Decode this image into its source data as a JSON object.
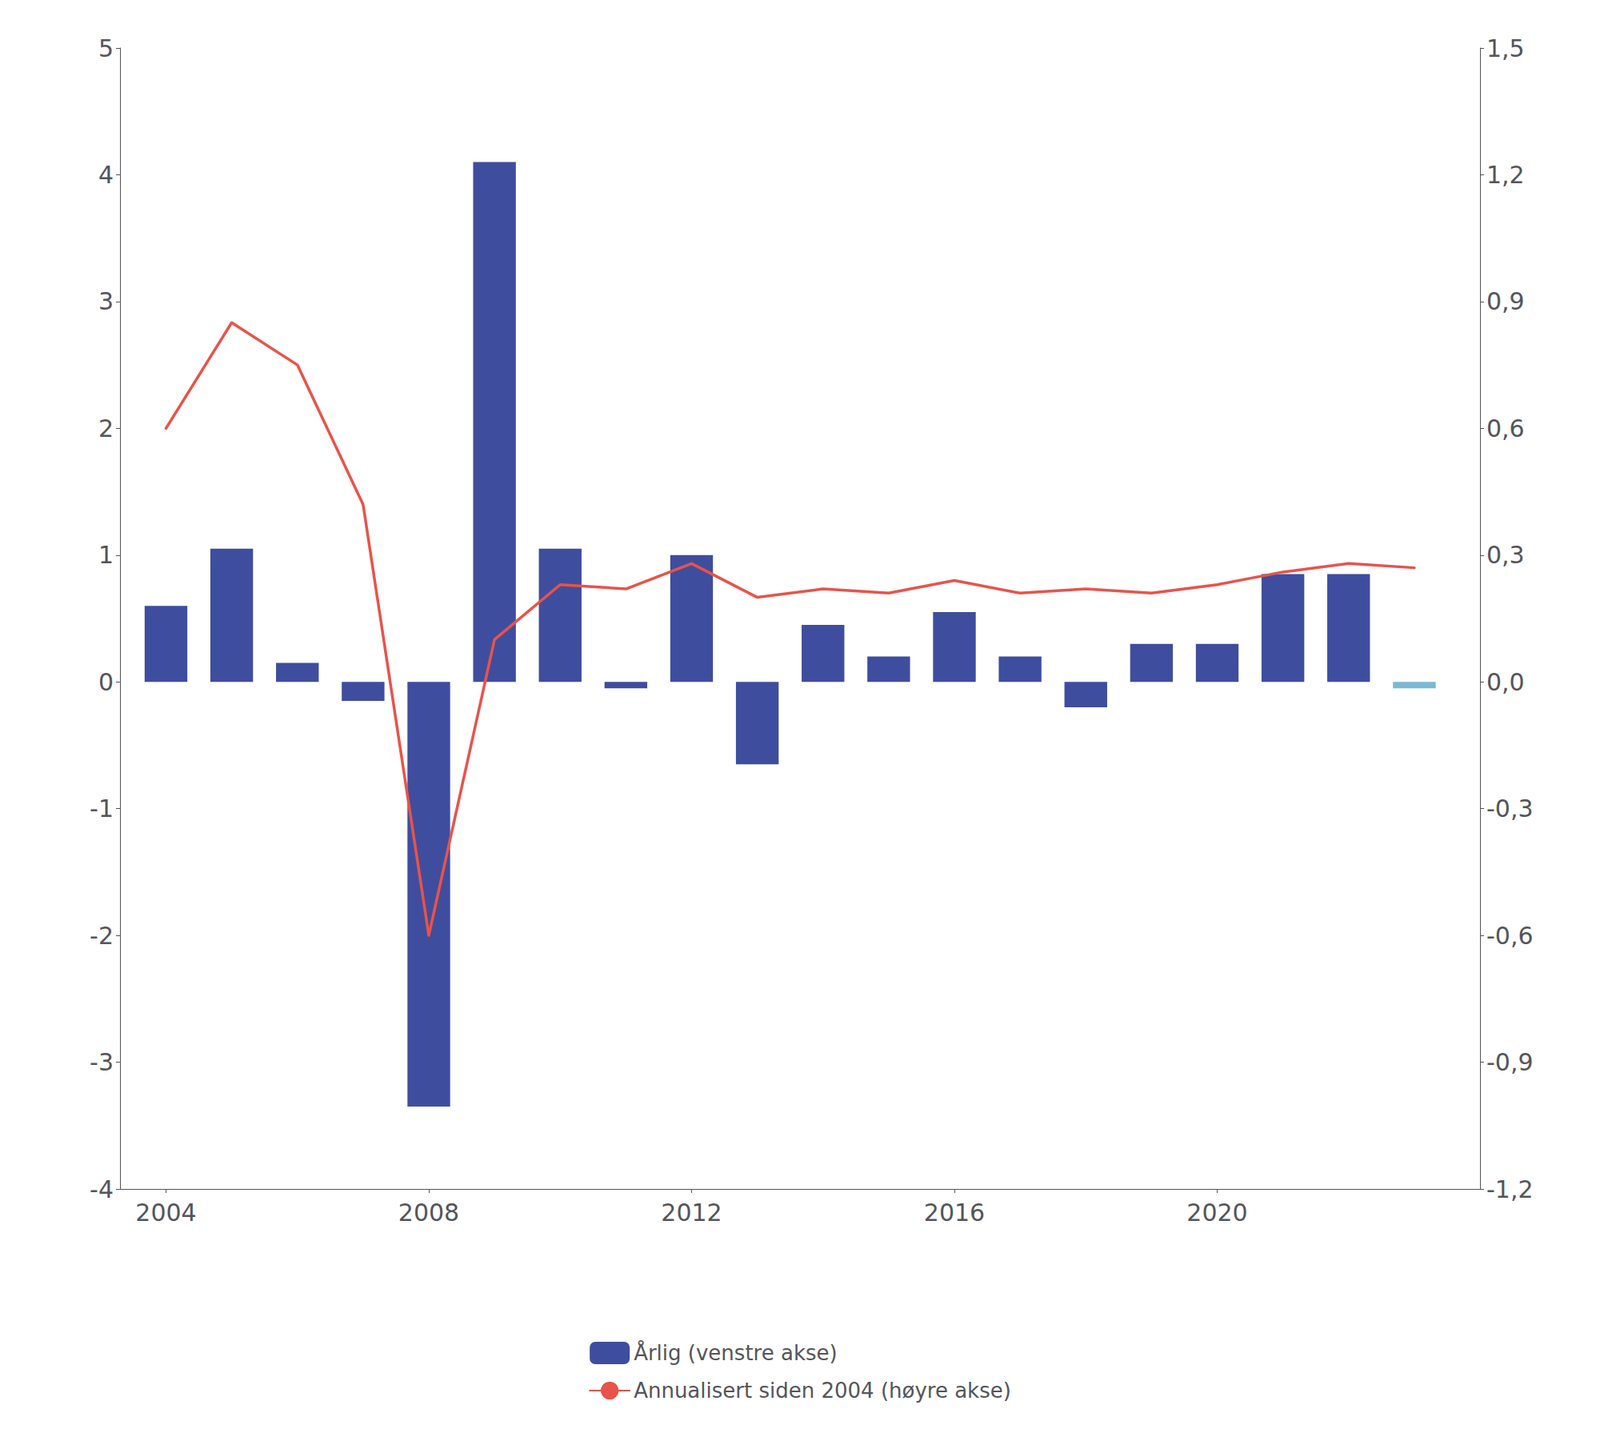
{
  "chart_data": {
    "type": "bar",
    "x": [
      2004,
      2005,
      2006,
      2007,
      2008,
      2009,
      2010,
      2011,
      2012,
      2013,
      2014,
      2015,
      2016,
      2017,
      2018,
      2019,
      2020,
      2021,
      2022,
      2023
    ],
    "xlim": [
      2003.3,
      2024.0
    ],
    "xticks": [
      2004,
      2008,
      2012,
      2016,
      2020
    ],
    "ylim": [
      -4,
      5
    ],
    "yticks": [
      -4,
      -3,
      -2,
      -1,
      0,
      1,
      2,
      3,
      4,
      5
    ],
    "y2lim": [
      -1.2,
      1.5
    ],
    "y2ticks": [
      {
        "value": -1.2,
        "label": "-1,2"
      },
      {
        "value": -0.9,
        "label": "-0,9"
      },
      {
        "value": -0.6,
        "label": "-0,6"
      },
      {
        "value": -0.3,
        "label": "-0,3"
      },
      {
        "value": 0,
        "label": "0,0"
      },
      {
        "value": 0.3,
        "label": "0,3"
      },
      {
        "value": 0.6,
        "label": "0,6"
      },
      {
        "value": 0.9,
        "label": "0,9"
      },
      {
        "value": 1.2,
        "label": "1,2"
      },
      {
        "value": 1.5,
        "label": "1,5"
      }
    ],
    "grid": false,
    "legend": "bottom",
    "series": [
      {
        "name": "Årlig (venstre akse)",
        "type": "bar",
        "color": "#3f4d9e",
        "colors": [
          "#3f4d9e",
          "#3f4d9e",
          "#3f4d9e",
          "#3f4d9e",
          "#3f4d9e",
          "#3f4d9e",
          "#3f4d9e",
          "#3f4d9e",
          "#3f4d9e",
          "#3f4d9e",
          "#3f4d9e",
          "#3f4d9e",
          "#3f4d9e",
          "#3f4d9e",
          "#3f4d9e",
          "#3f4d9e",
          "#3f4d9e",
          "#3f4d9e",
          "#3f4d9e",
          "#7ab8d4"
        ],
        "values": [
          0.6,
          1.05,
          0.15,
          -0.15,
          -3.35,
          4.1,
          1.05,
          -0.05,
          1.0,
          -0.65,
          0.45,
          0.2,
          0.55,
          0.2,
          -0.2,
          0.3,
          0.3,
          0.85,
          0.85,
          -0.05
        ]
      },
      {
        "name": "Annualisert siden 2004 (høyre akse)",
        "type": "line",
        "axis": "y2",
        "color": "#e8534a",
        "values": [
          0.6,
          0.85,
          0.75,
          0.42,
          -0.6,
          0.1,
          0.23,
          0.22,
          0.28,
          0.2,
          0.22,
          0.21,
          0.24,
          0.21,
          0.22,
          0.21,
          0.23,
          0.26,
          0.28,
          0.27
        ]
      }
    ]
  }
}
